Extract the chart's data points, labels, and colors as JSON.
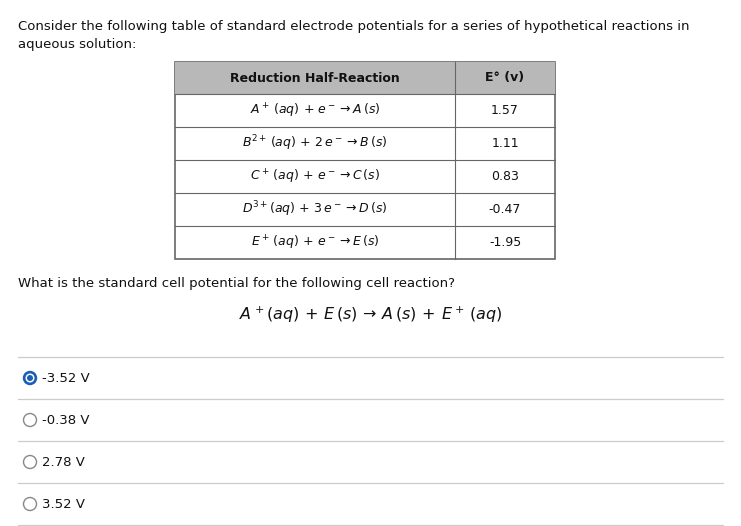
{
  "title_text_line1": "Consider the following table of standard electrode potentials for a series of hypothetical reactions in",
  "title_text_line2": "aqueous solution:",
  "table_header": [
    "Reduction Half-Reaction",
    "E° (v)"
  ],
  "table_rows_display": [
    [
      "A⁺ (aq) + e⁻ → A (s)",
      "1.57"
    ],
    [
      "B²⁺ (aq) + 2 e⁻ → B (s)",
      "1.11"
    ],
    [
      "C⁺ (aq) + e⁻ → C (s)",
      "0.83"
    ],
    [
      "D³⁺(aq) + 3 e⁻ → D (s)",
      "-0.47"
    ],
    [
      "E⁺ (aq) + e⁻ → E (s)",
      "-1.95"
    ]
  ],
  "question_text": "What is the standard cell potential for the following cell reaction?",
  "choices": [
    "-3.52 V",
    "-0.38 V",
    "2.78 V",
    "3.52 V"
  ],
  "selected_choice": 0,
  "bg_color": "#ffffff",
  "table_header_bg": "#b8b8b8",
  "table_border_color": "#666666",
  "row_line_color": "#aaaaaa",
  "text_color": "#111111",
  "choice_line_color": "#cccccc",
  "selected_fill_color": "#1a5fb4",
  "unselected_border_color": "#888888"
}
